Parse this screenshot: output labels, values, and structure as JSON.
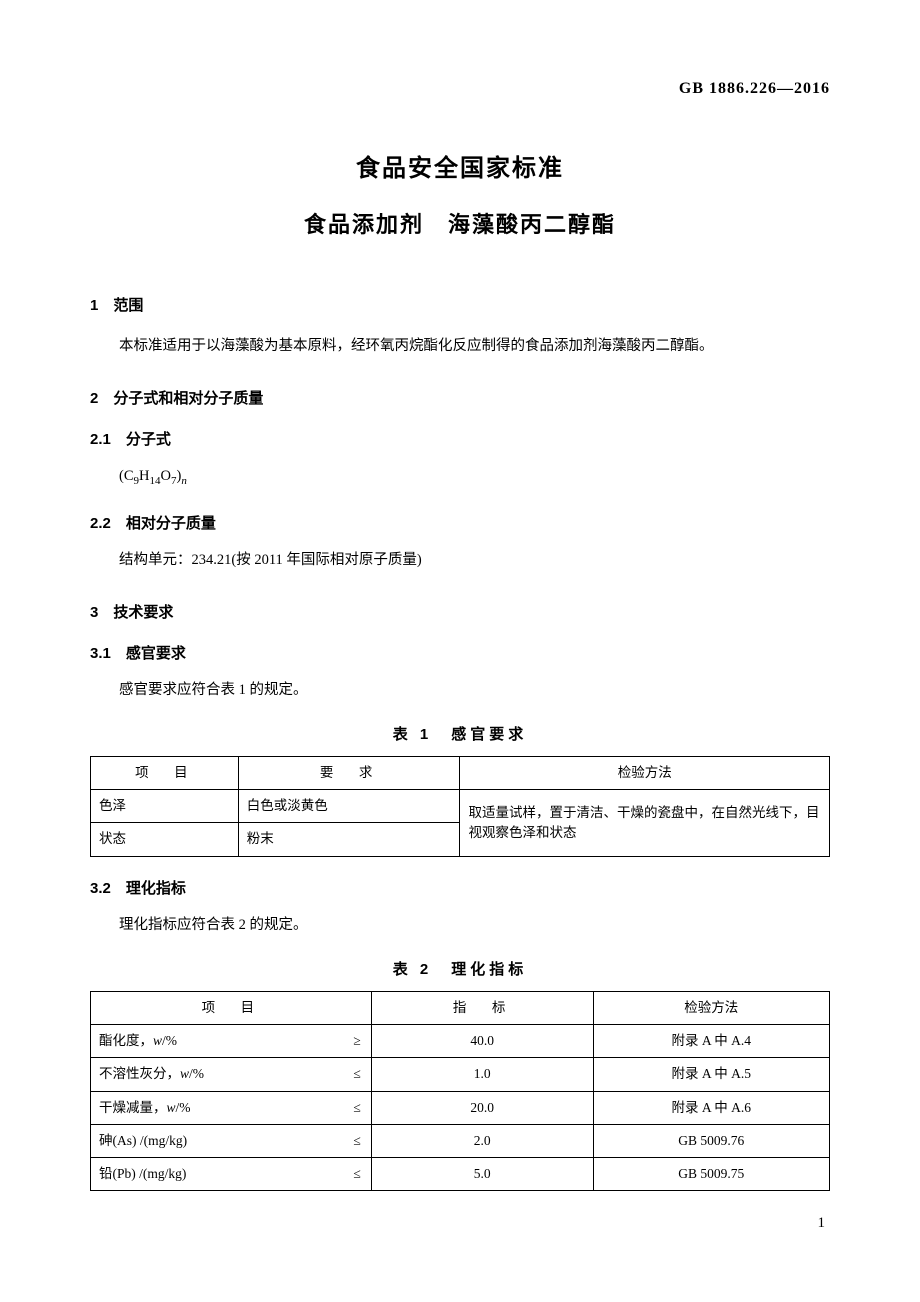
{
  "header_code": "GB 1886.226—2016",
  "title": "食品安全国家标准",
  "subtitle": "食品添加剂　海藻酸丙二醇酯",
  "s1": {
    "heading": "1　范围",
    "body": "本标准适用于以海藻酸为基本原料，经环氧丙烷酯化反应制得的食品添加剂海藻酸丙二醇酯。"
  },
  "s2": {
    "heading": "2　分子式和相对分子质量"
  },
  "s2_1": {
    "heading": "2.1　分子式",
    "formula_prefix": "(C",
    "c": "9",
    "h_label": "H",
    "h": "14",
    "o_label": "O",
    "o": "7",
    "formula_suffix": ")",
    "n": "n"
  },
  "s2_2": {
    "heading": "2.2　相对分子质量",
    "body": "结构单元：234.21(按 2011 年国际相对原子质量)"
  },
  "s3": {
    "heading": "3　技术要求"
  },
  "s3_1": {
    "heading": "3.1　感官要求",
    "body": "感官要求应符合表 1 的规定。"
  },
  "table1": {
    "caption": "表 1　感官要求",
    "headers": [
      "项　目",
      "要　求",
      "检验方法"
    ],
    "rows": [
      {
        "item": "色泽",
        "req": "白色或淡黄色"
      },
      {
        "item": "状态",
        "req": "粉末"
      }
    ],
    "method": "取适量试样，置于清洁、干燥的瓷盘中，在自然光线下，目视观察色泽和状态"
  },
  "s3_2": {
    "heading": "3.2　理化指标",
    "body": "理化指标应符合表 2 的规定。"
  },
  "table2": {
    "caption": "表 2　理化指标",
    "headers": [
      "项　目",
      "指　标",
      "检验方法"
    ],
    "rows": [
      {
        "item": "酯化度，w/%",
        "op": "≥",
        "val": "40.0",
        "method": "附录 A 中 A.4"
      },
      {
        "item": "不溶性灰分，w/%",
        "op": "≤",
        "val": "1.0",
        "method": "附录 A 中 A.5"
      },
      {
        "item": "干燥减量，w/%",
        "op": "≤",
        "val": "20.0",
        "method": "附录 A 中 A.6"
      },
      {
        "item": "砷(As) /(mg/kg)",
        "op": "≤",
        "val": "2.0",
        "method": "GB 5009.76"
      },
      {
        "item": "铅(Pb) /(mg/kg)",
        "op": "≤",
        "val": "5.0",
        "method": "GB 5009.75"
      }
    ]
  },
  "page_number": "1"
}
